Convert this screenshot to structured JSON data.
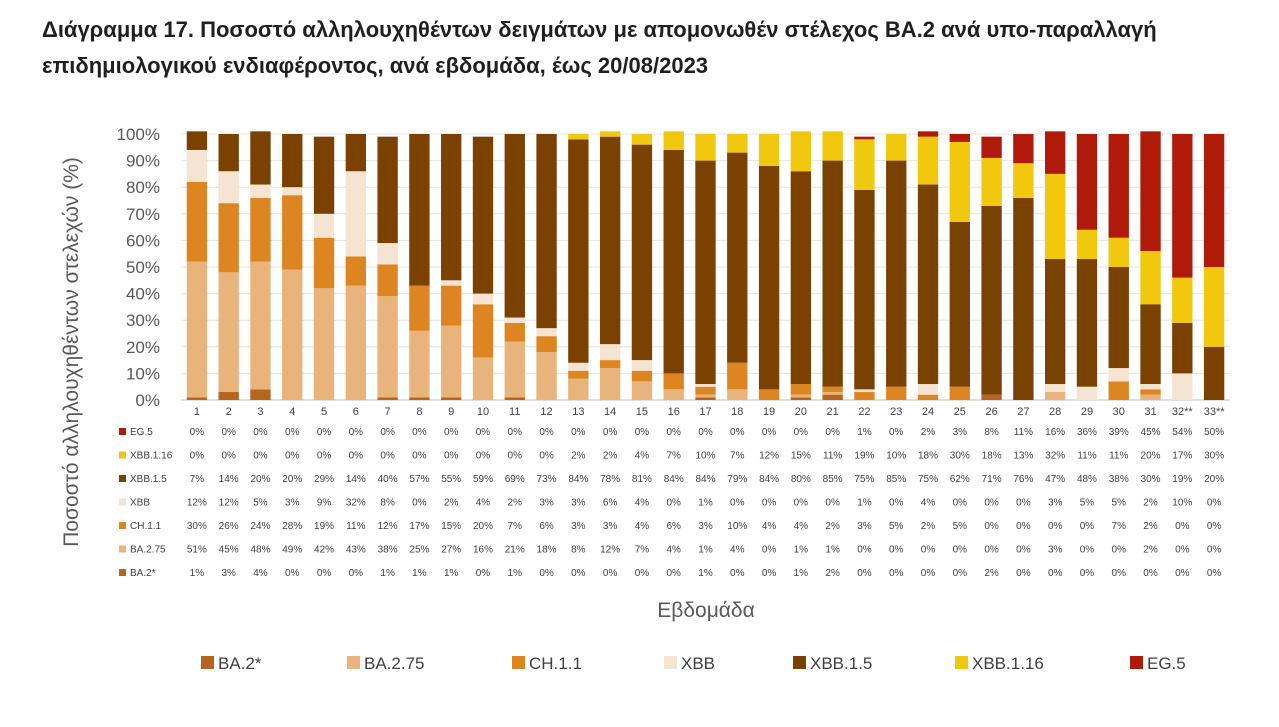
{
  "title": "Διάγραμμα 17. Ποσοστό αλληλουχηθέντων δειγμάτων με απομονωθέν στέλεχος ΒΑ.2 ανά υπο-παραλλαγή επιδημιολογικού ενδιαφέροντος, ανά εβδομάδα, έως 20/08/2023",
  "chart_data": {
    "type": "bar",
    "stacked": true,
    "title": "Διάγραμμα 17. Ποσοστό αλληλουχηθέντων δειγμάτων με απομονωθέν στέλεχος ΒΑ.2 ανά υπο-παραλλαγή επιδημιολογικού ενδιαφέροντος, ανά εβδομάδα, έως 20/08/2023",
    "xlabel": "Εβδομάδα",
    "ylabel": "Ποσοστό αλληλουχηθέντων στελεχών (%)",
    "ylim": [
      0,
      100
    ],
    "yticks": [
      "0%",
      "10%",
      "20%",
      "30%",
      "40%",
      "50%",
      "60%",
      "70%",
      "80%",
      "90%",
      "100%"
    ],
    "legend_position": "bottom",
    "categories": [
      "1",
      "2",
      "3",
      "4",
      "5",
      "6",
      "7",
      "8",
      "9",
      "10",
      "11",
      "12",
      "13",
      "14",
      "15",
      "16",
      "17",
      "18",
      "19",
      "20",
      "21",
      "22",
      "23",
      "24",
      "25",
      "26",
      "27",
      "28",
      "29",
      "30",
      "31",
      "32**",
      "33**"
    ],
    "series": [
      {
        "name": "BA.2*",
        "color": "#b5651d",
        "values": [
          1,
          3,
          4,
          0,
          0,
          0,
          1,
          1,
          1,
          0,
          1,
          0,
          0,
          0,
          0,
          0,
          1,
          0,
          0,
          1,
          2,
          0,
          0,
          0,
          0,
          2,
          0,
          0,
          0,
          0,
          0,
          0,
          0
        ],
        "labels": [
          "1%",
          "3%",
          "4%",
          "0%",
          "0%",
          "0%",
          "1%",
          "1%",
          "1%",
          "0%",
          "1%",
          "0%",
          "0%",
          "0%",
          "0%",
          "0%",
          "1%",
          "0%",
          "0%",
          "1%",
          "2%",
          "0%",
          "0%",
          "0%",
          "0%",
          "2%",
          "0%",
          "0%",
          "0%",
          "0%",
          "0%",
          "0%",
          "0%"
        ]
      },
      {
        "name": "BA.2.75",
        "color": "#e9b47c",
        "values": [
          51,
          45,
          48,
          49,
          42,
          43,
          38,
          25,
          27,
          16,
          21,
          18,
          8,
          12,
          7,
          4,
          1,
          4,
          0,
          1,
          1,
          0,
          0,
          0,
          0,
          0,
          0,
          3,
          0,
          0,
          2,
          0,
          0
        ],
        "labels": [
          "51%",
          "45%",
          "48%",
          "49%",
          "42%",
          "43%",
          "38%",
          "25%",
          "27%",
          "16%",
          "21%",
          "18%",
          "8%",
          "12%",
          "7%",
          "4%",
          "1%",
          "4%",
          "0%",
          "1%",
          "1%",
          "0%",
          "0%",
          "0%",
          "0%",
          "0%",
          "0%",
          "3%",
          "0%",
          "0%",
          "2%",
          "0%",
          "0%"
        ]
      },
      {
        "name": "CH.1.1",
        "color": "#dd8621",
        "values": [
          30,
          26,
          24,
          28,
          19,
          11,
          12,
          17,
          15,
          20,
          7,
          6,
          3,
          3,
          4,
          6,
          3,
          10,
          4,
          4,
          2,
          3,
          5,
          2,
          5,
          0,
          0,
          0,
          0,
          7,
          2,
          0,
          0
        ],
        "labels": [
          "30%",
          "26%",
          "24%",
          "28%",
          "19%",
          "11%",
          "12%",
          "17%",
          "15%",
          "20%",
          "7%",
          "6%",
          "3%",
          "3%",
          "4%",
          "6%",
          "3%",
          "10%",
          "4%",
          "4%",
          "2%",
          "3%",
          "5%",
          "2%",
          "5%",
          "0%",
          "0%",
          "0%",
          "0%",
          "7%",
          "2%",
          "0%",
          "0%"
        ]
      },
      {
        "name": "XBB",
        "color": "#f6e4d2",
        "values": [
          12,
          12,
          5,
          3,
          9,
          32,
          8,
          0,
          2,
          4,
          2,
          3,
          3,
          6,
          4,
          0,
          1,
          0,
          0,
          0,
          0,
          1,
          0,
          4,
          0,
          0,
          0,
          3,
          5,
          5,
          2,
          10,
          0
        ],
        "labels": [
          "12%",
          "12%",
          "5%",
          "3%",
          "9%",
          "32%",
          "8%",
          "0%",
          "2%",
          "4%",
          "2%",
          "3%",
          "3%",
          "6%",
          "4%",
          "0%",
          "1%",
          "0%",
          "0%",
          "0%",
          "0%",
          "1%",
          "0%",
          "4%",
          "0%",
          "0%",
          "0%",
          "3%",
          "5%",
          "5%",
          "2%",
          "10%",
          "0%"
        ]
      },
      {
        "name": "XBB.1.5",
        "color": "#7a4100",
        "values": [
          7,
          14,
          20,
          20,
          29,
          14,
          40,
          57,
          55,
          59,
          69,
          73,
          84,
          78,
          81,
          84,
          84,
          79,
          84,
          80,
          85,
          75,
          85,
          75,
          62,
          71,
          76,
          47,
          48,
          38,
          30,
          19,
          20
        ],
        "labels": [
          "7%",
          "14%",
          "20%",
          "20%",
          "29%",
          "14%",
          "40%",
          "57%",
          "55%",
          "59%",
          "69%",
          "73%",
          "84%",
          "78%",
          "81%",
          "84%",
          "84%",
          "79%",
          "84%",
          "80%",
          "85%",
          "75%",
          "85%",
          "75%",
          "62%",
          "71%",
          "76%",
          "47%",
          "48%",
          "38%",
          "30%",
          "19%",
          "20%"
        ]
      },
      {
        "name": "XBB.1.16",
        "color": "#f2c80f",
        "values": [
          0,
          0,
          0,
          0,
          0,
          0,
          0,
          0,
          0,
          0,
          0,
          0,
          2,
          2,
          4,
          7,
          10,
          7,
          12,
          15,
          11,
          19,
          10,
          18,
          30,
          18,
          13,
          32,
          11,
          11,
          20,
          17,
          30
        ],
        "labels": [
          "0%",
          "0%",
          "0%",
          "0%",
          "0%",
          "0%",
          "0%",
          "0%",
          "0%",
          "0%",
          "0%",
          "0%",
          "2%",
          "2%",
          "4%",
          "7%",
          "10%",
          "7%",
          "12%",
          "15%",
          "11%",
          "19%",
          "10%",
          "18%",
          "30%",
          "18%",
          "13%",
          "32%",
          "11%",
          "11%",
          "20%",
          "17%",
          "30%"
        ]
      },
      {
        "name": "EG.5",
        "color": "#b01a09",
        "values": [
          0,
          0,
          0,
          0,
          0,
          0,
          0,
          0,
          0,
          0,
          0,
          0,
          0,
          0,
          0,
          0,
          0,
          0,
          0,
          0,
          0,
          1,
          0,
          2,
          3,
          8,
          11,
          16,
          36,
          39,
          45,
          54,
          50
        ],
        "labels": [
          "0%",
          "0%",
          "0%",
          "0%",
          "0%",
          "0%",
          "0%",
          "0%",
          "0%",
          "0%",
          "0%",
          "0%",
          "0%",
          "0%",
          "0%",
          "0%",
          "0%",
          "0%",
          "0%",
          "0%",
          "0%",
          "1%",
          "0%",
          "2%",
          "3%",
          "8%",
          "11%",
          "16%",
          "36%",
          "39%",
          "45%",
          "54%",
          "50%"
        ]
      }
    ]
  }
}
